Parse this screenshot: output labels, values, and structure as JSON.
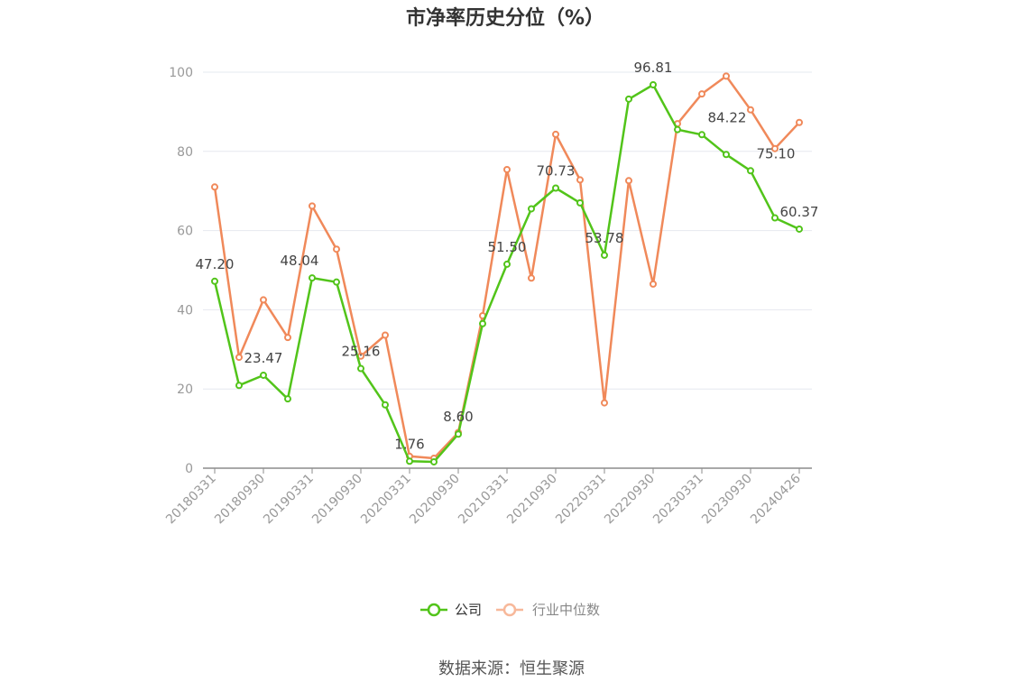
{
  "chart_data": {
    "type": "line",
    "title": "市净率历史分位（%）",
    "ylim": [
      0,
      100
    ],
    "yticks": [
      0,
      20,
      40,
      60,
      80,
      100
    ],
    "grid": true,
    "legend_position": "bottom-center",
    "x": [
      "20180331",
      "20180630",
      "20180930",
      "20181231",
      "20190331",
      "20190630",
      "20190930",
      "20191231",
      "20200331",
      "20200630",
      "20200930",
      "20201231",
      "20210331",
      "20210630",
      "20210930",
      "20211231",
      "20220331",
      "20220630",
      "20220930",
      "20221231",
      "20230331",
      "20230630",
      "20230930",
      "20231231",
      "20240426"
    ],
    "xtick_labels": [
      "20180331",
      "20180930",
      "20190331",
      "20190930",
      "20200331",
      "20200930",
      "20210331",
      "20210930",
      "20220331",
      "20220930",
      "20230331",
      "20230930",
      "20240426"
    ],
    "series": [
      {
        "name": "公司",
        "color": "#52c41a",
        "values": [
          47.2,
          20.9,
          23.47,
          17.5,
          48.04,
          47.0,
          25.16,
          16.0,
          1.76,
          1.6,
          8.6,
          36.5,
          51.5,
          65.5,
          70.73,
          67.0,
          53.78,
          93.2,
          96.81,
          85.5,
          84.22,
          79.2,
          75.1,
          63.2,
          60.37
        ],
        "labels": {
          "0": "47.20",
          "2": "23.47",
          "4": "48.04",
          "6": "25.16",
          "8": "1.76",
          "10": "8.60",
          "12": "51.50",
          "14": "70.73",
          "16": "53.78",
          "18": "96.81",
          "20": "84.22",
          "22": "75.10",
          "24": "60.37"
        }
      },
      {
        "name": "行业中位数",
        "color": "#f0895a",
        "values": [
          71.0,
          28.0,
          42.5,
          33.0,
          66.2,
          55.3,
          28.3,
          33.6,
          3.0,
          2.5,
          9.0,
          38.5,
          75.4,
          48.0,
          84.3,
          72.8,
          16.5,
          72.6,
          46.5,
          87.0,
          94.5,
          99.0,
          90.5,
          80.7,
          87.3
        ]
      }
    ]
  },
  "source": "数据来源：恒生聚源"
}
